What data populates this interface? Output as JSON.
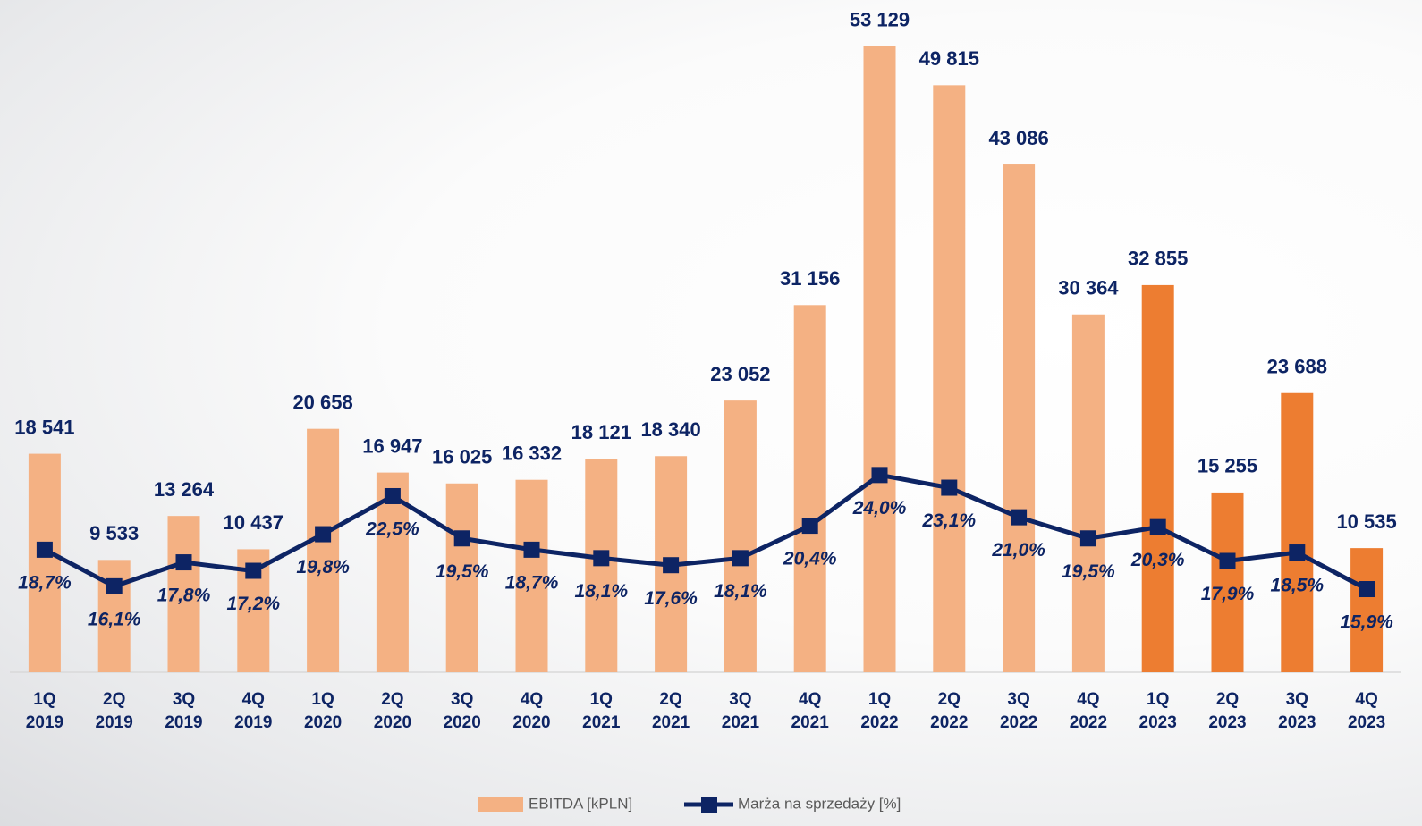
{
  "chart_data": {
    "type": "bar",
    "categories": [
      "1Q 2019",
      "2Q 2019",
      "3Q 2019",
      "4Q 2019",
      "1Q 2020",
      "2Q 2020",
      "3Q 2020",
      "4Q 2020",
      "1Q 2021",
      "2Q 2021",
      "3Q 2021",
      "4Q 2021",
      "1Q 2022",
      "2Q 2022",
      "3Q 2022",
      "4Q 2022",
      "1Q 2023",
      "2Q 2023",
      "3Q 2023",
      "4Q 2023"
    ],
    "ylim": [
      0,
      55000
    ],
    "y2lim": [
      10,
      56
    ],
    "legend": "bottom",
    "series": [
      {
        "name": "EBITDA [kPLN]",
        "type": "bar",
        "color": "#f4b183",
        "colors": [
          "#f4b183",
          "#f4b183",
          "#f4b183",
          "#f4b183",
          "#f4b183",
          "#f4b183",
          "#f4b183",
          "#f4b183",
          "#f4b183",
          "#f4b183",
          "#f4b183",
          "#f4b183",
          "#f4b183",
          "#f4b183",
          "#f4b183",
          "#f4b183",
          "#ed7d31",
          "#ed7d31",
          "#ed7d31",
          "#ed7d31"
        ],
        "values": [
          18541,
          9533,
          13264,
          10437,
          20658,
          16947,
          16025,
          16332,
          18121,
          18340,
          23052,
          31156,
          53129,
          49815,
          43086,
          30364,
          32855,
          15255,
          23688,
          10535
        ],
        "value_labels": [
          "18 541",
          "9 533",
          "13 264",
          "10 437",
          "20 658",
          "16 947",
          "16 025",
          "16 332",
          "18 121",
          "18 340",
          "23 052",
          "31 156",
          "53 129",
          "49 815",
          "43 086",
          "30 364",
          "32 855",
          "15 255",
          "23 688",
          "10 535"
        ]
      },
      {
        "name": "Marża na sprzedaży [%]",
        "type": "line",
        "axis": "y2",
        "color": "#0d2464",
        "values": [
          18.7,
          16.1,
          17.8,
          17.2,
          19.8,
          22.5,
          19.5,
          18.7,
          18.1,
          17.6,
          18.1,
          20.4,
          24.0,
          23.1,
          21.0,
          19.5,
          20.3,
          17.9,
          18.5,
          15.9
        ],
        "value_labels": [
          "18,7%",
          "16,1%",
          "17,8%",
          "17,2%",
          "19,8%",
          "22,5%",
          "19,5%",
          "18,7%",
          "18,1%",
          "17,6%",
          "18,1%",
          "20,4%",
          "24,0%",
          "23,1%",
          "21,0%",
          "19,5%",
          "20,3%",
          "17,9%",
          "18,5%",
          "15,9%"
        ]
      }
    ]
  }
}
